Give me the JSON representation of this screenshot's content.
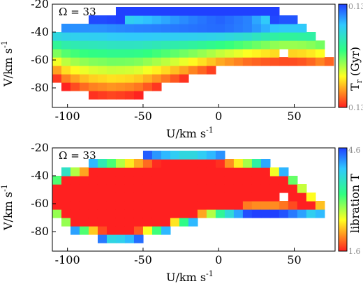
{
  "chart_data": [
    {
      "type": "heatmap",
      "panel": "top",
      "annotation": "Ω = 33",
      "xlabel": "U/km s",
      "xlabel_sup": "-1",
      "ylabel": "V/km s",
      "ylabel_sup": "-1",
      "xlim": [
        -110,
        77
      ],
      "ylim": [
        -94,
        -20
      ],
      "xticks": [
        "-100",
        "-50",
        "0",
        "50"
      ],
      "yticks": [
        "-20",
        "-40",
        "-60",
        "-80"
      ],
      "colorbar": {
        "label_main": "T",
        "label_sub": "r",
        "label_unit": " (Gyr)",
        "top_tick": "0.13",
        "bottom_tick": "0.13"
      },
      "region": {
        "upper_envelope": [
          [
            -110,
            -43
          ],
          [
            -100,
            -35
          ],
          [
            -80,
            -28
          ],
          [
            -60,
            -24
          ],
          [
            -40,
            -22
          ],
          [
            -20,
            -21
          ],
          [
            0,
            -21
          ],
          [
            20,
            -22
          ],
          [
            35,
            -24
          ],
          [
            45,
            -28
          ],
          [
            55,
            -35
          ],
          [
            65,
            -45
          ],
          [
            72,
            -55
          ],
          [
            76,
            -63
          ]
        ],
        "lower_envelope": [
          [
            -110,
            -72
          ],
          [
            -100,
            -80
          ],
          [
            -85,
            -86
          ],
          [
            -70,
            -88
          ],
          [
            -55,
            -86
          ],
          [
            -40,
            -80
          ],
          [
            -20,
            -73
          ],
          [
            0,
            -67
          ],
          [
            20,
            -64
          ],
          [
            40,
            -63
          ],
          [
            52,
            -63
          ],
          [
            60,
            -64
          ],
          [
            68,
            -66
          ],
          [
            76,
            -63
          ]
        ]
      },
      "color_field": "distance_from_ridge",
      "ridge": [
        [
          -110,
          -32
        ],
        [
          -80,
          -30
        ],
        [
          -50,
          -32
        ],
        [
          -20,
          -34
        ],
        [
          0,
          -35
        ],
        [
          20,
          -34
        ],
        [
          40,
          -30
        ]
      ],
      "hole_cells": [
        [
          44,
          -55
        ]
      ]
    },
    {
      "type": "heatmap",
      "panel": "bottom",
      "annotation": "Ω = 33",
      "xlabel": "U/km s",
      "xlabel_sup": "-1",
      "ylabel": "V/km s",
      "ylabel_sup": "-1",
      "xlim": [
        -110,
        77
      ],
      "ylim": [
        -94,
        -20
      ],
      "xticks": [
        "-100",
        "-50",
        "0",
        "50"
      ],
      "yticks": [
        "-20",
        "-40",
        "-60",
        "-80"
      ],
      "colorbar": {
        "label_main": "libration T",
        "top_tick": "4.6",
        "bottom_tick": "1.6"
      },
      "region": {
        "upper_envelope": [
          [
            -110,
            -42
          ],
          [
            -100,
            -34
          ],
          [
            -80,
            -29
          ],
          [
            -60,
            -26
          ],
          [
            -40,
            -24
          ],
          [
            -20,
            -23
          ],
          [
            0,
            -24
          ],
          [
            20,
            -27
          ],
          [
            35,
            -31
          ],
          [
            50,
            -40
          ],
          [
            62,
            -51
          ],
          [
            72,
            -60
          ],
          [
            76,
            -65
          ]
        ],
        "lower_envelope": [
          [
            -110,
            -68
          ],
          [
            -100,
            -78
          ],
          [
            -85,
            -84
          ],
          [
            -70,
            -87
          ],
          [
            -55,
            -86
          ],
          [
            -40,
            -82
          ],
          [
            -20,
            -75
          ],
          [
            0,
            -70
          ],
          [
            20,
            -67
          ],
          [
            40,
            -67
          ],
          [
            55,
            -68
          ],
          [
            65,
            -69
          ],
          [
            76,
            -65
          ]
        ]
      },
      "color_field": "distance_from_edge",
      "hole_cells": [
        [
          44,
          -57
        ]
      ]
    }
  ]
}
